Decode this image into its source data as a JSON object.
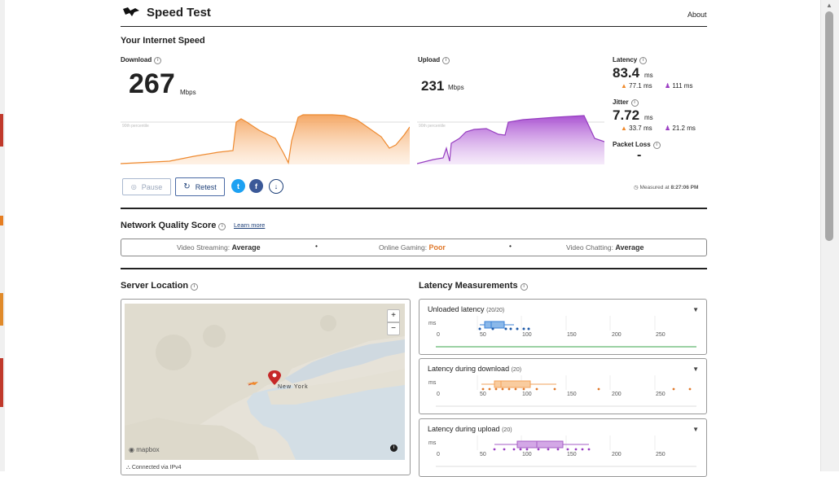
{
  "header": {
    "app_title": "Speed Test",
    "about_link": "About"
  },
  "speed": {
    "section_title": "Your Internet Speed",
    "download": {
      "label": "Download",
      "value": "267",
      "unit": "Mbps",
      "percentile_label": "90th percentile"
    },
    "upload": {
      "label": "Upload",
      "value": "231",
      "unit": "Mbps",
      "percentile_label": "90th percentile"
    },
    "latency": {
      "label": "Latency",
      "value": "83.4",
      "unit": "ms",
      "down_value": "77.1 ms",
      "up_value": "111 ms"
    },
    "jitter": {
      "label": "Jitter",
      "value": "7.72",
      "unit": "ms",
      "down_value": "33.7 ms",
      "up_value": "21.2 ms"
    },
    "packet_loss": {
      "label": "Packet Loss",
      "value": "-"
    }
  },
  "controls": {
    "pause_label": "Pause",
    "retest_label": "Retest",
    "measured_prefix": "Measured at",
    "measured_time": "8:27:06 PM"
  },
  "quality": {
    "section_title": "Network Quality Score",
    "learn_more": "Learn more",
    "items": [
      {
        "label": "Video Streaming:",
        "value": "Average",
        "color": "#333333"
      },
      {
        "label": "Online Gaming:",
        "value": "Poor",
        "color": "#e0782a"
      },
      {
        "label": "Video Chatting:",
        "value": "Average",
        "color": "#333333"
      }
    ]
  },
  "server": {
    "section_title": "Server Location",
    "map_city": "New York",
    "zoom_in": "+",
    "zoom_out": "−",
    "attribution": "mapbox",
    "connected": "Connected via IPv4"
  },
  "latency_measurements": {
    "section_title": "Latency Measurements",
    "axis_unit": "ms",
    "ticks": [
      "0",
      "50",
      "100",
      "150",
      "200",
      "250"
    ],
    "panels": [
      {
        "title": "Unloaded latency",
        "count": "(20/20)",
        "color": "#3b82d6"
      },
      {
        "title": "Latency during download",
        "count": "(20)",
        "color": "#f2a25a"
      },
      {
        "title": "Latency during upload",
        "count": "(20)",
        "color": "#a65cc4"
      }
    ]
  },
  "colors": {
    "download": "#f08a2c",
    "upload": "#9a3cc2",
    "accent": "#1d3f78"
  }
}
